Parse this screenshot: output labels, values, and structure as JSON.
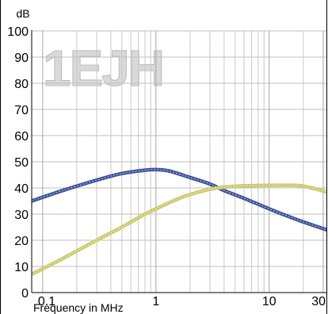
{
  "chart_data": {
    "type": "line",
    "ylabel": "dB",
    "xlabel": "Frequency in MHz",
    "watermark": "1EJH",
    "x_scale": "log",
    "xlim": [
      0.08,
      32
    ],
    "ylim": [
      0,
      100
    ],
    "y_ticks": [
      0,
      10,
      20,
      30,
      40,
      50,
      60,
      70,
      80,
      90,
      100
    ],
    "x_tick_labels": [
      {
        "value": 0.1,
        "label": "0.1"
      },
      {
        "value": 1,
        "label": "1"
      },
      {
        "value": 10,
        "label": "10"
      },
      {
        "value": 30,
        "label": "30"
      }
    ],
    "x_minor_ticks": [
      0.2,
      0.3,
      0.4,
      0.5,
      0.6,
      0.7,
      0.8,
      0.9,
      2,
      3,
      4,
      5,
      6,
      7,
      8,
      9,
      20
    ],
    "grid": true,
    "series": [
      {
        "color": "#3b4f9a",
        "points": [
          [
            0.08,
            35
          ],
          [
            0.15,
            39
          ],
          [
            0.3,
            43
          ],
          [
            0.5,
            45.5
          ],
          [
            0.8,
            46.8
          ],
          [
            1.0,
            47
          ],
          [
            1.3,
            46.5
          ],
          [
            2,
            44
          ],
          [
            3,
            41.5
          ],
          [
            4,
            39
          ],
          [
            6,
            36
          ],
          [
            10,
            32
          ],
          [
            15,
            29
          ],
          [
            20,
            27
          ],
          [
            32,
            24
          ]
        ]
      },
      {
        "color": "#c9c96a",
        "points": [
          [
            0.08,
            7
          ],
          [
            0.15,
            13
          ],
          [
            0.3,
            20
          ],
          [
            0.5,
            25
          ],
          [
            0.8,
            30
          ],
          [
            1.0,
            32
          ],
          [
            1.5,
            35.5
          ],
          [
            2,
            37.5
          ],
          [
            3,
            39.5
          ],
          [
            4,
            40.3
          ],
          [
            6,
            40.8
          ],
          [
            10,
            41
          ],
          [
            15,
            41
          ],
          [
            20,
            40.7
          ],
          [
            32,
            38.5
          ]
        ]
      }
    ]
  }
}
